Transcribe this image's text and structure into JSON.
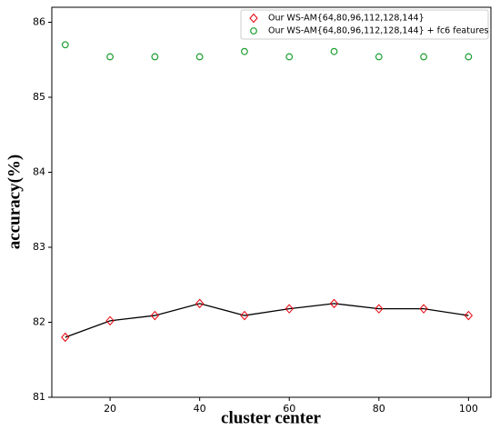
{
  "chart_data": {
    "type": "line",
    "xlabel": "cluster center",
    "ylabel": "accuracy(%)",
    "x": [
      10,
      20,
      30,
      40,
      50,
      60,
      70,
      80,
      90,
      100
    ],
    "series": [
      {
        "name": "Our WS-AM{64,80,96,112,128,144}",
        "color": "#e8000b",
        "line_color": "#000000",
        "marker": "diamond",
        "values": [
          81.8,
          82.02,
          82.09,
          82.25,
          82.09,
          82.18,
          82.25,
          82.18,
          82.18,
          82.09
        ]
      },
      {
        "name": "Our WS-AM{64,80,96,112,128,144} + fc6 features",
        "color": "#1a9e2e",
        "line_color": null,
        "marker": "circle",
        "values": [
          85.7,
          85.54,
          85.54,
          85.54,
          85.61,
          85.54,
          85.61,
          85.54,
          85.54,
          85.54
        ]
      }
    ],
    "xlim": [
      7,
      105
    ],
    "ylim": [
      81,
      86.2
    ],
    "xticks": [
      20,
      40,
      60,
      80,
      100
    ],
    "yticks": [
      81,
      82,
      83,
      84,
      85,
      86
    ],
    "legend": "upper right"
  }
}
